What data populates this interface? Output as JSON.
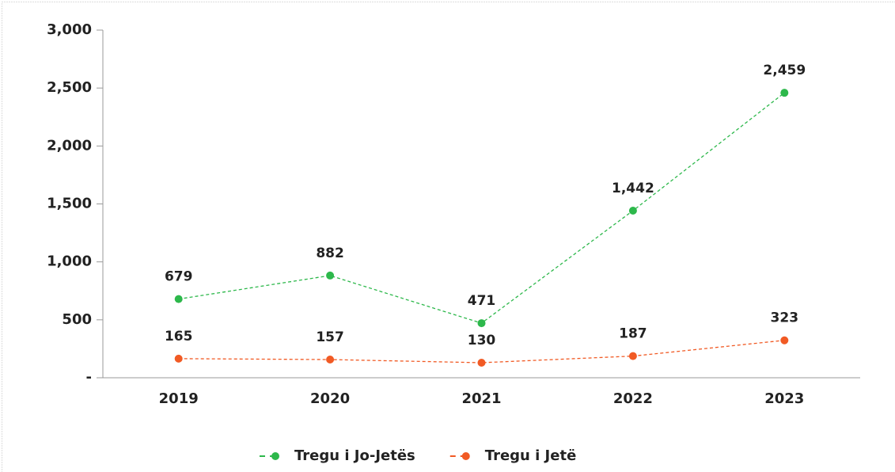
{
  "chart_data": {
    "type": "line",
    "categories": [
      "2019",
      "2020",
      "2021",
      "2022",
      "2023"
    ],
    "series": [
      {
        "name": "Tregu i Jo-Jetës",
        "color": "#2db84b",
        "values": [
          679,
          882,
          471,
          1442,
          2459
        ],
        "value_labels": [
          "679",
          "882",
          "471",
          "1,442",
          "2,459"
        ]
      },
      {
        "name": "Tregu i Jetë",
        "color": "#f15a24",
        "values": [
          165,
          157,
          130,
          187,
          323
        ]
      }
    ],
    "ylim": [
      0,
      3000
    ],
    "yticks": [
      {
        "value": 0,
        "label": "-"
      },
      500,
      {
        "value": 1000,
        "label": "1,000"
      },
      {
        "value": 1500,
        "label": "1,500"
      },
      {
        "value": 2000,
        "label": "2,000"
      },
      {
        "value": 2500,
        "label": "2,500"
      },
      {
        "value": 3000,
        "label": "3,000"
      }
    ],
    "legend": "bottom"
  }
}
